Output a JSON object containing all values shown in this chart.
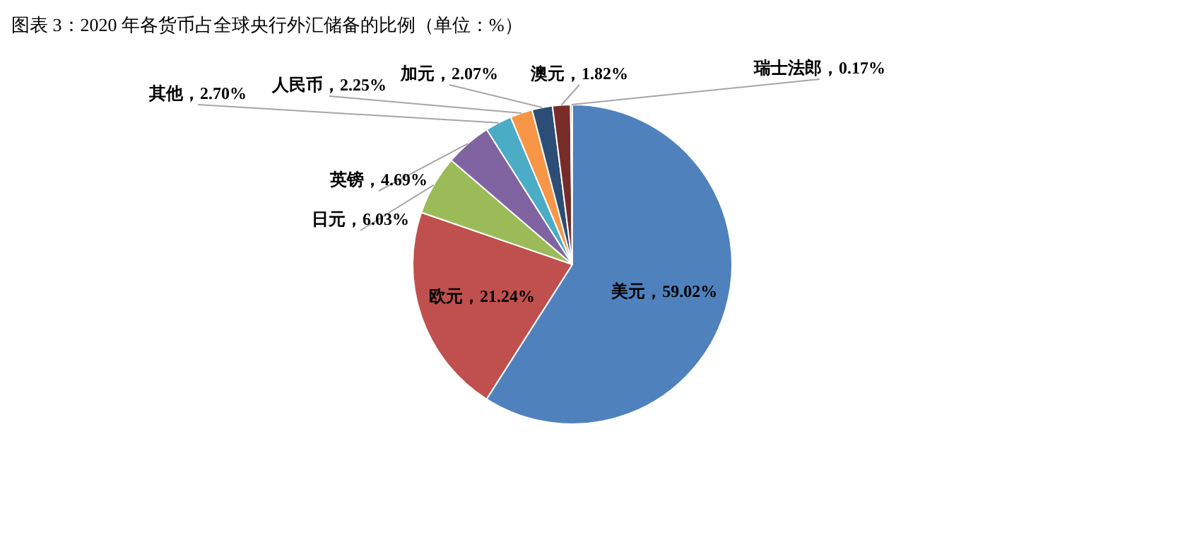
{
  "chart_data": {
    "type": "pie",
    "title": "图表 3：2020 年各货币占全球央行外汇储备的比例（单位：%）",
    "categories": [
      "美元",
      "欧元",
      "日元",
      "英镑",
      "其他",
      "人民币",
      "加元",
      "澳元",
      "瑞士法郎"
    ],
    "values": [
      59.02,
      21.24,
      6.03,
      4.69,
      2.7,
      2.25,
      2.07,
      1.82,
      0.17
    ],
    "value_labels": [
      "59.02%",
      "21.24%",
      "6.03%",
      "4.69%",
      "2.70%",
      "2.25%",
      "2.07%",
      "1.82%",
      "0.17%"
    ],
    "colors": [
      "#4f81bd",
      "#c0504d",
      "#9bbb59",
      "#8064a2",
      "#4bacc6",
      "#f79646",
      "#2c4d75",
      "#772c2a",
      "#5f7530"
    ]
  }
}
